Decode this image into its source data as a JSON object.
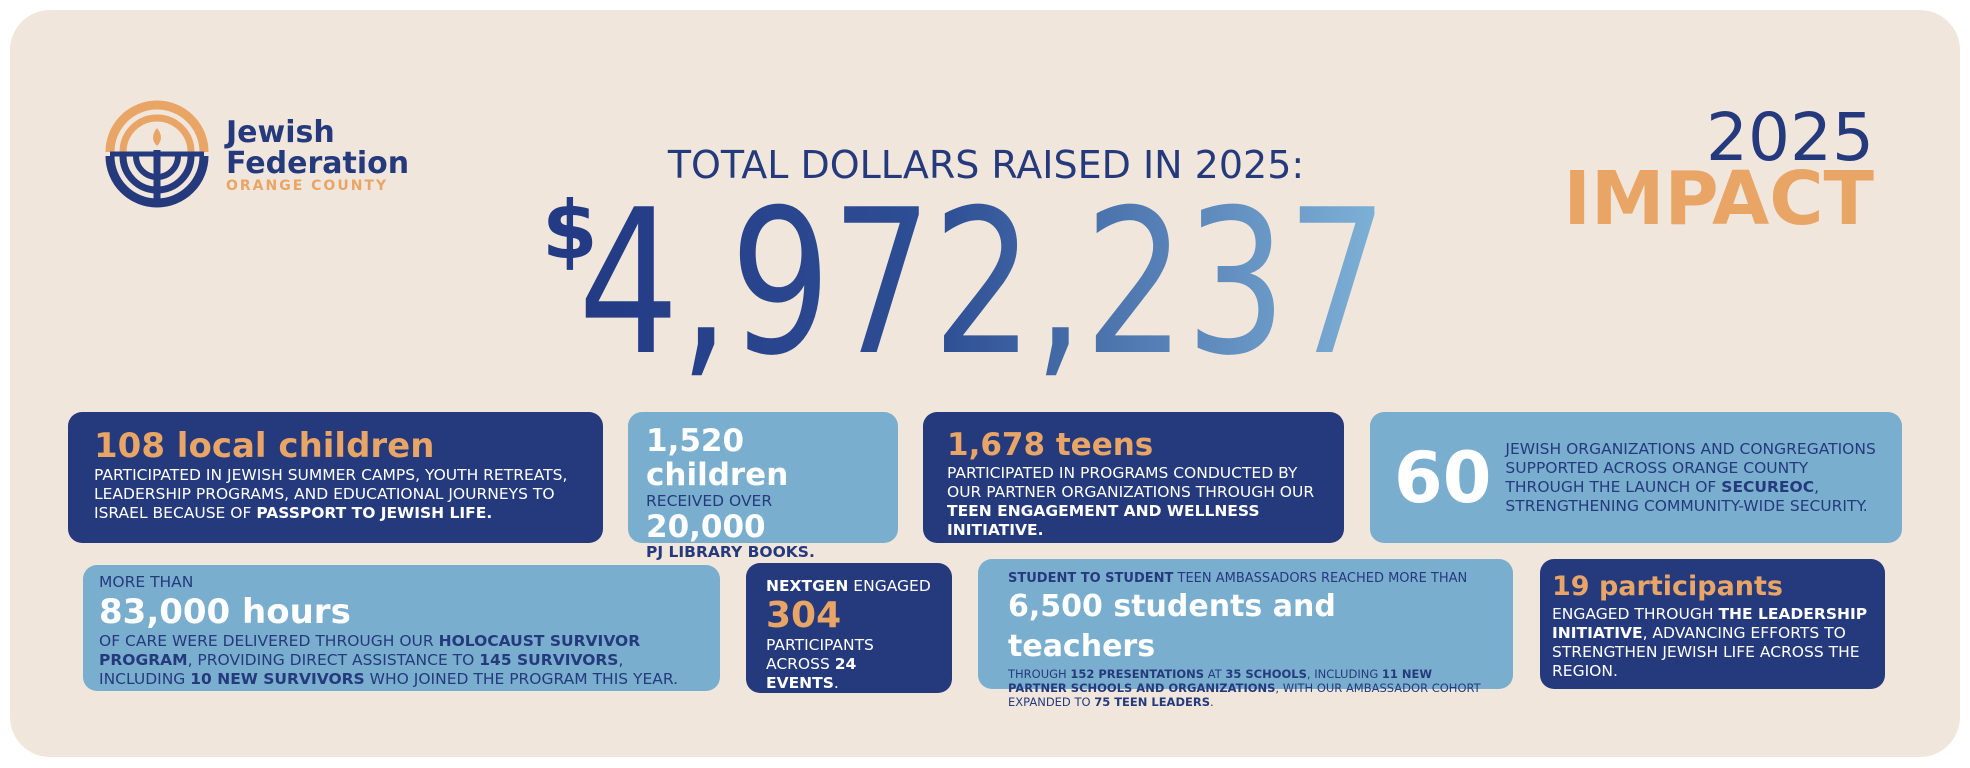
{
  "logo": {
    "line1": "Jewish",
    "line2": "Federation",
    "line3": "ORANGE COUNTY"
  },
  "header": {
    "title": "TOTAL DOLLARS RAISED IN 2025:",
    "currency": "$",
    "amount": "4,972,237",
    "year": "2025",
    "impact": "IMPACT"
  },
  "cards": [
    {
      "headline": "108 local children",
      "body": [
        "PARTICIPATED IN JEWISH SUMMER CAMPS, YOUTH RETREATS, LEADERSHIP PROGRAMS, AND EDUCATIONAL JOURNEYS TO ISRAEL BECAUSE OF ",
        "PASSPORT TO JEWISH LIFE."
      ]
    },
    {
      "headline": "1,520 children",
      "lead": "RECEIVED OVER",
      "figure": "20,000",
      "tail": "PJ LIBRARY BOOKS."
    },
    {
      "headline": "1,678 teens",
      "body": [
        "PARTICIPATED IN PROGRAMS CONDUCTED BY OUR PARTNER ORGANIZATIONS THROUGH OUR ",
        "TEEN ENGAGEMENT AND WELLNESS INITIATIVE."
      ]
    },
    {
      "figure": "60",
      "body": [
        "JEWISH ORGANIZATIONS AND CONGREGATIONS SUPPORTED ACROSS ORANGE COUNTY THROUGH THE LAUNCH OF ",
        "SECUREOC",
        ", STRENGTHENING COMMUNITY-WIDE SECURITY."
      ]
    },
    {
      "lead": "MORE THAN",
      "headline": "83,000 hours",
      "body": [
        "OF CARE WERE DELIVERED THROUGH OUR ",
        "HOLOCAUST SURVIVOR PROGRAM",
        ", PROVIDING DIRECT ASSISTANCE TO ",
        "145 SURVIVORS",
        ", INCLUDING ",
        "10 NEW SURVIVORS",
        " WHO JOINED THE PROGRAM THIS YEAR."
      ]
    },
    {
      "lead": [
        "NEXTGEN",
        " ENGAGED"
      ],
      "figure": "304",
      "body": [
        "PARTICIPANTS ACROSS ",
        "24 EVENTS",
        "."
      ]
    },
    {
      "lead": [
        "STUDENT TO STUDENT",
        " TEEN AMBASSADORS REACHED MORE THAN"
      ],
      "headline": "6,500 students and teachers",
      "body": [
        "THROUGH ",
        "152 PRESENTATIONS",
        " AT ",
        "35 SCHOOLS",
        ", INCLUDING ",
        "11 NEW PARTNER SCHOOLS AND ORGANIZATIONS",
        ", WITH OUR AMBASSADOR COHORT EXPANDED TO ",
        "75 TEEN LEADERS",
        "."
      ]
    },
    {
      "headline": "19 participants",
      "body": [
        "ENGAGED THROUGH ",
        "THE LEADERSHIP INITIATIVE",
        ", ADVANCING EFFORTS TO STRENGTHEN JEWISH LIFE ACROSS THE REGION."
      ]
    }
  ]
}
